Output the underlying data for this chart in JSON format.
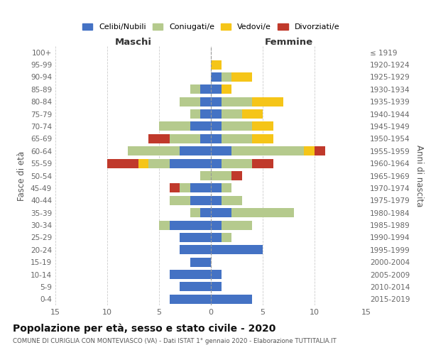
{
  "age_groups": [
    "0-4",
    "5-9",
    "10-14",
    "15-19",
    "20-24",
    "25-29",
    "30-34",
    "35-39",
    "40-44",
    "45-49",
    "50-54",
    "55-59",
    "60-64",
    "65-69",
    "70-74",
    "75-79",
    "80-84",
    "85-89",
    "90-94",
    "95-99",
    "100+"
  ],
  "birth_years": [
    "2015-2019",
    "2010-2014",
    "2005-2009",
    "2000-2004",
    "1995-1999",
    "1990-1994",
    "1985-1989",
    "1980-1984",
    "1975-1979",
    "1970-1974",
    "1965-1969",
    "1960-1964",
    "1955-1959",
    "1950-1954",
    "1945-1949",
    "1940-1944",
    "1935-1939",
    "1930-1934",
    "1925-1929",
    "1920-1924",
    "≤ 1919"
  ],
  "colors": {
    "celibi": "#4472c4",
    "coniugati": "#b5ca8d",
    "vedovi": "#f5c518",
    "divorziati": "#c0392b"
  },
  "maschi": {
    "celibi": [
      4,
      3,
      4,
      2,
      3,
      3,
      4,
      1,
      2,
      2,
      0,
      4,
      3,
      1,
      2,
      1,
      1,
      1,
      0,
      0,
      0
    ],
    "coniugati": [
      0,
      0,
      0,
      0,
      0,
      0,
      1,
      1,
      2,
      1,
      1,
      2,
      5,
      3,
      3,
      1,
      2,
      1,
      0,
      0,
      0
    ],
    "vedovi": [
      0,
      0,
      0,
      0,
      0,
      0,
      0,
      0,
      0,
      0,
      0,
      1,
      0,
      0,
      0,
      0,
      0,
      0,
      0,
      0,
      0
    ],
    "divorziati": [
      0,
      0,
      0,
      0,
      0,
      0,
      0,
      0,
      0,
      1,
      0,
      3,
      0,
      2,
      0,
      0,
      0,
      0,
      0,
      0,
      0
    ]
  },
  "femmine": {
    "celibi": [
      4,
      1,
      1,
      0,
      5,
      1,
      1,
      2,
      1,
      1,
      0,
      1,
      2,
      1,
      1,
      1,
      1,
      1,
      1,
      0,
      0
    ],
    "coniugati": [
      0,
      0,
      0,
      0,
      0,
      1,
      3,
      6,
      2,
      1,
      2,
      3,
      7,
      3,
      3,
      2,
      3,
      0,
      1,
      0,
      0
    ],
    "vedovi": [
      0,
      0,
      0,
      0,
      0,
      0,
      0,
      0,
      0,
      0,
      0,
      0,
      1,
      2,
      2,
      2,
      3,
      1,
      2,
      1,
      0
    ],
    "divorziati": [
      0,
      0,
      0,
      0,
      0,
      0,
      0,
      0,
      0,
      0,
      1,
      2,
      1,
      0,
      0,
      0,
      0,
      0,
      0,
      0,
      0
    ]
  },
  "title": "Popolazione per età, sesso e stato civile - 2020",
  "subtitle": "COMUNE DI CURIGLIA CON MONTEVIASCO (VA) - Dati ISTAT 1° gennaio 2020 - Elaborazione TUTTITALIA.IT",
  "xlabel_left": "Maschi",
  "xlabel_right": "Femmine",
  "ylabel_left": "Fasce di età",
  "ylabel_right": "Anni di nascita",
  "legend_labels": [
    "Celibi/Nubili",
    "Coniugati/e",
    "Vedovi/e",
    "Divorziati/e"
  ],
  "xlim": 15,
  "background_color": "#ffffff",
  "grid_color": "#cccccc"
}
